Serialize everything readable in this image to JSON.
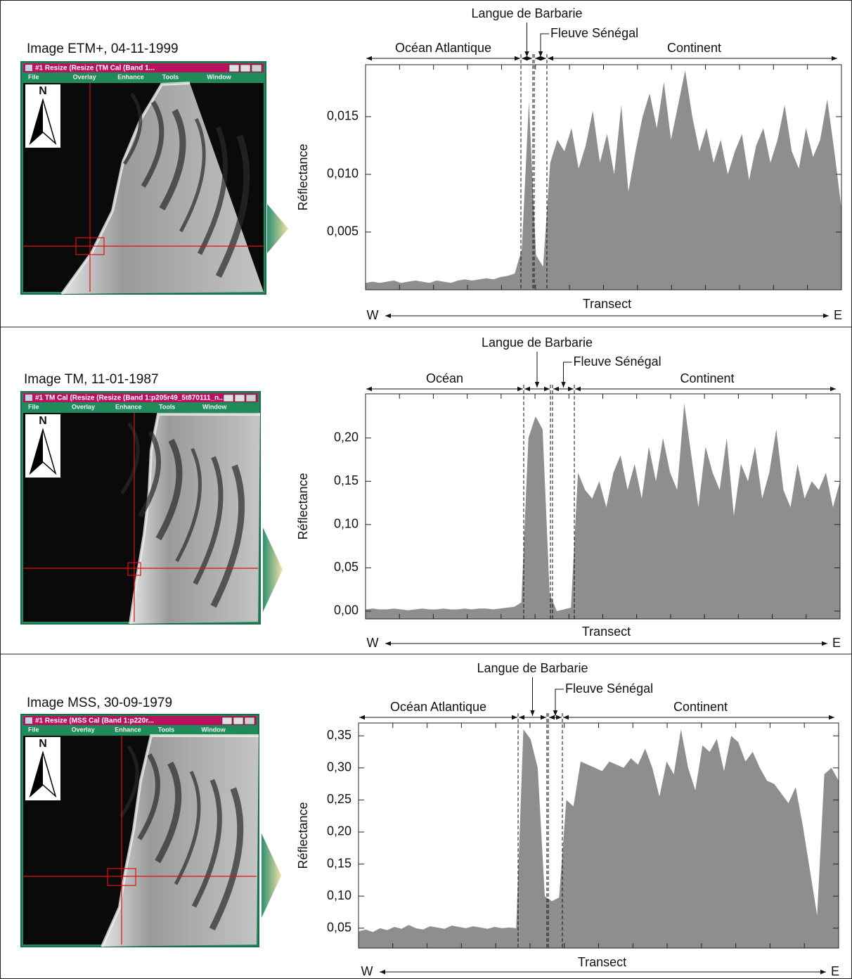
{
  "panels": [
    {
      "caption": "Image ETM+, 04-11-1999",
      "window_title": "#1 Resize (Resize (TM Cal (Band 1...",
      "menu": [
        "File",
        "Overlay",
        "Enhance",
        "Tools",
        "Window"
      ],
      "north": "N"
    },
    {
      "caption": "Image TM, 11-01-1987",
      "window_title": "#1 TM Cal (Resize (Resize (Band 1:p205r49_5t870111_n...",
      "menu": [
        "File",
        "Overlay",
        "Enhance",
        "Tools",
        "Window"
      ],
      "north": "N"
    },
    {
      "caption": "Image MSS, 30-09-1979",
      "window_title": "#1 Resize (MSS Cal (Band 1:p220r...",
      "menu": [
        "File",
        "Overlay",
        "Enhance",
        "Tools",
        "Window"
      ],
      "north": "N"
    }
  ],
  "chart_data": [
    {
      "type": "area",
      "ylabel": "Réflectance",
      "xlabel": "Transect",
      "west": "W",
      "east": "E",
      "regions": [
        "Océan Atlantique",
        "Langue de Barbarie",
        "Fleuve Sénégal",
        "Continent"
      ],
      "color": "#8e8e8e",
      "ylim": [
        0,
        0.0195
      ],
      "yticks": [
        {
          "value": 0.005,
          "label": "0,005"
        },
        {
          "value": 0.01,
          "label": "0,010"
        },
        {
          "value": 0.015,
          "label": "0,015"
        }
      ],
      "values": [
        0.0006,
        0.0007,
        0.0006,
        0.0007,
        0.0008,
        0.0006,
        0.0007,
        0.0008,
        0.0007,
        0.0006,
        0.0008,
        0.0007,
        0.0006,
        0.0008,
        0.0009,
        0.0008,
        0.0009,
        0.001,
        0.0009,
        0.0011,
        0.0012,
        0.0014,
        0.0035,
        0.0163,
        0.003,
        0.002,
        0.011,
        0.013,
        0.012,
        0.014,
        0.0105,
        0.0125,
        0.0155,
        0.011,
        0.0135,
        0.01,
        0.016,
        0.0085,
        0.012,
        0.015,
        0.017,
        0.014,
        0.018,
        0.013,
        0.016,
        0.019,
        0.015,
        0.012,
        0.014,
        0.011,
        0.013,
        0.01,
        0.012,
        0.0135,
        0.0095,
        0.0125,
        0.014,
        0.011,
        0.013,
        0.016,
        0.012,
        0.0105,
        0.014,
        0.0115,
        0.013,
        0.0165,
        0.012,
        0.007
      ]
    },
    {
      "type": "area",
      "ylabel": "Réflectance",
      "xlabel": "Transect",
      "west": "W",
      "east": "E",
      "regions": [
        "Océan",
        "Langue de Barbarie",
        "Fleuve Sénégal",
        "Continent"
      ],
      "color": "#8e8e8e",
      "ylim": [
        -0.009,
        0.251
      ],
      "yticks": [
        {
          "value": 0,
          "label": "0,00"
        },
        {
          "value": 0.05,
          "label": "0,05"
        },
        {
          "value": 0.1,
          "label": "0,10"
        },
        {
          "value": 0.15,
          "label": "0,15"
        },
        {
          "value": 0.2,
          "label": "0,20"
        }
      ],
      "values": [
        0.002,
        0.003,
        0.002,
        0.002,
        0.003,
        0.002,
        0.001,
        0.002,
        0.003,
        0.002,
        0.002,
        0.003,
        0.002,
        0.002,
        0.003,
        0.002,
        0.003,
        0.003,
        0.002,
        0.003,
        0.004,
        0.005,
        0.01,
        0.2,
        0.225,
        0.21,
        0.02,
        0.0,
        0.002,
        0.004,
        0.16,
        0.14,
        0.13,
        0.15,
        0.12,
        0.16,
        0.18,
        0.14,
        0.17,
        0.13,
        0.19,
        0.15,
        0.2,
        0.16,
        0.14,
        0.24,
        0.18,
        0.12,
        0.19,
        0.16,
        0.14,
        0.2,
        0.11,
        0.17,
        0.15,
        0.19,
        0.13,
        0.16,
        0.21,
        0.14,
        0.12,
        0.17,
        0.13,
        0.15,
        0.14,
        0.16,
        0.12,
        0.15
      ]
    },
    {
      "type": "area",
      "ylabel": "Réflectance",
      "xlabel": "Transect",
      "west": "W",
      "east": "E",
      "regions": [
        "Océan Atlantique",
        "Langue de Barbarie",
        "Fleuve Sénégal",
        "Continent"
      ],
      "color": "#8e8e8e",
      "ylim": [
        0.019,
        0.37
      ],
      "yticks": [
        {
          "value": 0.05,
          "label": "0,05"
        },
        {
          "value": 0.1,
          "label": "0,10"
        },
        {
          "value": 0.15,
          "label": "0,15"
        },
        {
          "value": 0.2,
          "label": "0,20"
        },
        {
          "value": 0.25,
          "label": "0,25"
        },
        {
          "value": 0.3,
          "label": "0,30"
        },
        {
          "value": 0.35,
          "label": "0,35"
        }
      ],
      "values": [
        0.045,
        0.048,
        0.044,
        0.05,
        0.047,
        0.052,
        0.049,
        0.055,
        0.05,
        0.048,
        0.053,
        0.051,
        0.049,
        0.054,
        0.052,
        0.05,
        0.053,
        0.051,
        0.049,
        0.052,
        0.05,
        0.051,
        0.05,
        0.36,
        0.345,
        0.3,
        0.1,
        0.092,
        0.098,
        0.25,
        0.24,
        0.31,
        0.305,
        0.3,
        0.295,
        0.31,
        0.305,
        0.3,
        0.315,
        0.305,
        0.33,
        0.3,
        0.255,
        0.31,
        0.29,
        0.36,
        0.3,
        0.265,
        0.335,
        0.325,
        0.345,
        0.295,
        0.35,
        0.34,
        0.31,
        0.325,
        0.3,
        0.28,
        0.275,
        0.26,
        0.245,
        0.27,
        0.21,
        0.14,
        0.07,
        0.29,
        0.3,
        0.28
      ]
    }
  ]
}
